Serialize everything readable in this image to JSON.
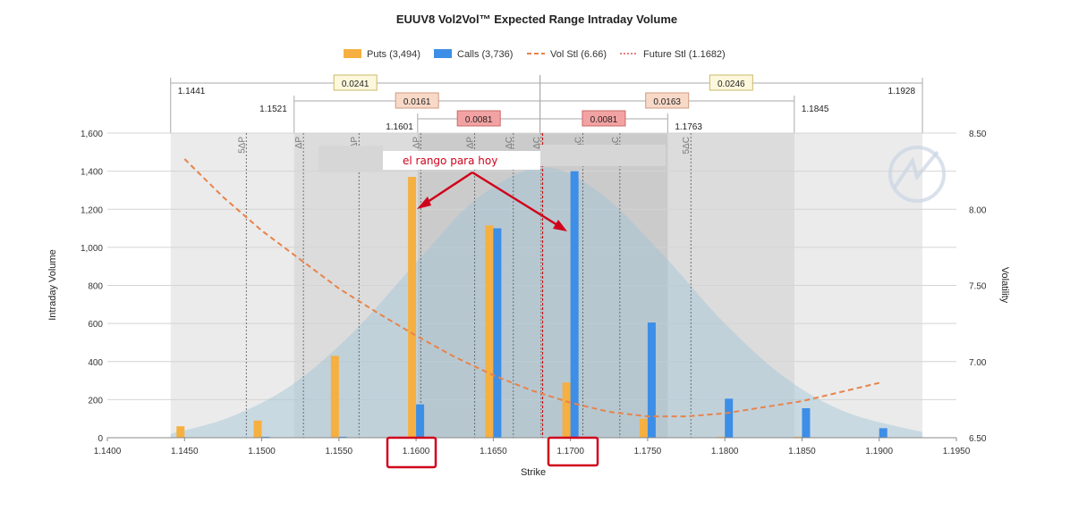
{
  "chart_data": {
    "type": "bar",
    "title": "EUUV8 Vol2Vol™ Expected Range Intraday Volume",
    "xlabel": "Strike",
    "ylabel": "Intraday Volume",
    "y2label": "Volatility",
    "xlim": [
      1.14,
      1.195
    ],
    "ylim": [
      0,
      1600
    ],
    "y2lim": [
      6.5,
      8.5
    ],
    "x_ticks": [
      "1.1400",
      "1.1450",
      "1.1500",
      "1.1550",
      "1.1600",
      "1.1650",
      "1.1700",
      "1.1750",
      "1.1800",
      "1.1850",
      "1.1900",
      "1.1950"
    ],
    "y_ticks": [
      "0",
      "200",
      "400",
      "600",
      "800",
      "1,000",
      "1,200",
      "1,400",
      "1,600"
    ],
    "y2_ticks": [
      "6.50",
      "7.00",
      "7.50",
      "8.00",
      "8.50"
    ],
    "grid": true,
    "legend_position": "top",
    "legend": [
      "Puts (3,494)",
      "Calls (3,736)",
      "Vol Stl (6.66)",
      "Future Stl (1.1682)"
    ],
    "strikes": [
      1.145,
      1.15,
      1.155,
      1.16,
      1.165,
      1.17,
      1.175,
      1.18,
      1.185,
      1.19
    ],
    "series": [
      {
        "name": "Puts (3,494)",
        "color": "#f5b041",
        "values": [
          60,
          90,
          430,
          1370,
          1115,
          290,
          100,
          5,
          5,
          0
        ]
      },
      {
        "name": "Calls (3,736)",
        "color": "#3d8ee6",
        "values": [
          0,
          5,
          5,
          175,
          1100,
          1400,
          605,
          205,
          155,
          50
        ]
      }
    ],
    "vol_curve": {
      "name": "Vol Stl (6.66)",
      "color": "#e8834a",
      "x": [
        1.145,
        1.1475,
        1.15,
        1.1525,
        1.155,
        1.1575,
        1.16,
        1.1625,
        1.165,
        1.1675,
        1.17,
        1.1725,
        1.175,
        1.1775,
        1.18,
        1.1825,
        1.185,
        1.1875,
        1.19
      ],
      "y": [
        8.33,
        8.08,
        7.86,
        7.67,
        7.48,
        7.32,
        7.17,
        7.03,
        6.91,
        6.81,
        6.73,
        6.67,
        6.64,
        6.64,
        6.66,
        6.7,
        6.74,
        6.8,
        6.86
      ]
    },
    "future_settle": {
      "name": "Future Stl (1.1682)",
      "x": 1.1682,
      "color": "#cc0000"
    },
    "volume_distribution": {
      "x": [
        1.1441,
        1.148,
        1.152,
        1.156,
        1.16,
        1.164,
        1.1682,
        1.172,
        1.176,
        1.18,
        1.184,
        1.188,
        1.1928
      ],
      "y": [
        20,
        110,
        280,
        560,
        920,
        1260,
        1420,
        1280,
        960,
        600,
        310,
        130,
        30
      ]
    },
    "bands": [
      {
        "lo": 1.1441,
        "hi": 1.1928,
        "color": "#ebebeb"
      },
      {
        "lo": 1.1521,
        "hi": 1.1845,
        "color": "#dcdcdc"
      },
      {
        "lo": 1.1601,
        "hi": 1.1763,
        "color": "#cbcbcb"
      }
    ],
    "delta_lines": [
      {
        "x": 1.149,
        "label": "5ΔP"
      },
      {
        "x": 1.1527,
        "label": "ΔP"
      },
      {
        "x": 1.1563,
        "label": "ΔP"
      },
      {
        "x": 1.1603,
        "label": "ΔP"
      },
      {
        "x": 1.1638,
        "label": "ΔP"
      },
      {
        "x": 1.1663,
        "label": "ΔC"
      },
      {
        "x": 1.1681,
        "label": "ΔC"
      },
      {
        "x": 1.1708,
        "label": "ΔC"
      },
      {
        "x": 1.1732,
        "label": "ΔC"
      },
      {
        "x": 1.1778,
        "label": "5ΔC"
      }
    ],
    "ranges": [
      {
        "from": "1.1441",
        "to": "1.1928",
        "left_width": "0.0241",
        "right_width": "0.0246",
        "fill": "#fdf8dc",
        "stroke": "#c9b96a"
      },
      {
        "from": "1.1521",
        "to": "1.1845",
        "left_width": "0.0161",
        "right_width": "0.0163",
        "fill": "#f8d9c8",
        "stroke": "#cf9b80"
      },
      {
        "from": "1.1601",
        "to": "1.1763",
        "left_width": "0.0081",
        "right_width": "0.0081",
        "fill": "#f2a2a2",
        "stroke": "#c96a6a"
      }
    ]
  },
  "annotations": {
    "text": "el rango para hoy",
    "boxed_ticks": [
      "1.1600",
      "1.1700"
    ],
    "color": "#d0021b"
  }
}
